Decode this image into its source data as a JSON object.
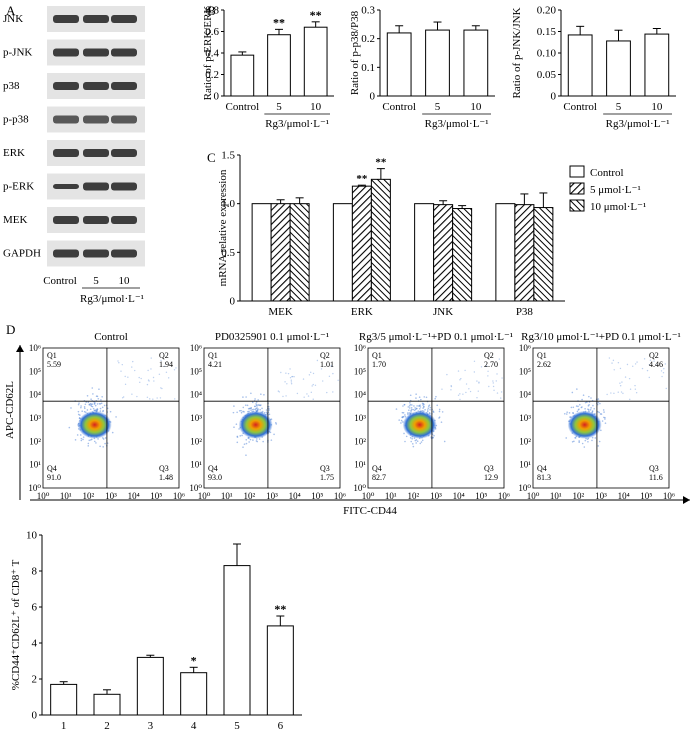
{
  "panels": {
    "A": "A",
    "B": "B",
    "C": "C",
    "D": "D"
  },
  "western_blot": {
    "bands": [
      "JNK",
      "p-JNK",
      "p38",
      "p-p38",
      "ERK",
      "p-ERK",
      "MEK",
      "GAPDH"
    ],
    "lanes": [
      "Control",
      "5",
      "10"
    ],
    "group_label": "Rg3/μmol·L⁻¹"
  },
  "chart_data": [
    {
      "id": "B1",
      "type": "bar",
      "categories": [
        "Control",
        "5",
        "10"
      ],
      "values": [
        0.38,
        0.57,
        0.64
      ],
      "errors": [
        0.03,
        0.05,
        0.05
      ],
      "significance": [
        "",
        "**",
        "**"
      ],
      "ylabel": "Ratio of p-ERK/ERK",
      "xlabel": "Rg3/μmol·L⁻¹",
      "ylim": [
        0,
        0.8
      ],
      "yticks": [
        "0",
        "0.2",
        "0.4",
        "0.6",
        "0.8"
      ]
    },
    {
      "id": "B2",
      "type": "bar",
      "categories": [
        "Control",
        "5",
        "10"
      ],
      "values": [
        0.22,
        0.23,
        0.23
      ],
      "errors": [
        0.025,
        0.028,
        0.015
      ],
      "significance": [
        "",
        "",
        ""
      ],
      "ylabel": "Ratio of p-p38/P38",
      "xlabel": "Rg3/μmol·L⁻¹",
      "ylim": [
        0,
        0.3
      ],
      "yticks": [
        "0",
        "0.1",
        "0.2",
        "0.3"
      ]
    },
    {
      "id": "B3",
      "type": "bar",
      "categories": [
        "Control",
        "5",
        "10"
      ],
      "values": [
        0.142,
        0.128,
        0.144
      ],
      "errors": [
        0.02,
        0.025,
        0.013
      ],
      "significance": [
        "",
        "",
        ""
      ],
      "ylabel": "Ratio of p-JNK/JNK",
      "xlabel": "Rg3/μmol·L⁻¹",
      "ylim": [
        0,
        0.2
      ],
      "yticks": [
        "0",
        "0.05",
        "0.10",
        "0.15",
        "0.20"
      ]
    },
    {
      "id": "C",
      "type": "bar",
      "categories": [
        "MEK",
        "ERK",
        "JNK",
        "P38"
      ],
      "series": [
        {
          "name": "Control",
          "values": [
            1.0,
            1.0,
            1.0,
            1.0
          ],
          "errors": [
            0,
            0,
            0,
            0
          ],
          "significance": [
            "",
            "",
            "",
            ""
          ]
        },
        {
          "name": "5  μmol·L⁻¹",
          "values": [
            1.0,
            1.18,
            0.99,
            0.99
          ],
          "errors": [
            0.04,
            0.01,
            0.04,
            0.11
          ],
          "significance": [
            "",
            "**",
            "",
            ""
          ]
        },
        {
          "name": "10 μmol·L⁻¹",
          "values": [
            1.0,
            1.25,
            0.95,
            0.96
          ],
          "errors": [
            0.06,
            0.11,
            0.03,
            0.15
          ],
          "significance": [
            "",
            "**",
            "",
            ""
          ]
        }
      ],
      "ylabel": "mRNA relative expression",
      "ylim": [
        0,
        1.5
      ],
      "yticks": [
        "0",
        "0.5",
        "1.0",
        "1.5"
      ]
    },
    {
      "id": "D-bar",
      "type": "bar",
      "categories": [
        "1",
        "2",
        "3",
        "4",
        "5",
        "6"
      ],
      "values": [
        1.7,
        1.15,
        3.2,
        2.35,
        8.3,
        4.95
      ],
      "errors": [
        0.15,
        0.25,
        0.12,
        0.3,
        1.2,
        0.55
      ],
      "significance": [
        "",
        "",
        "",
        "*",
        "",
        "**"
      ],
      "ylabel": "%CD44⁺CD62L⁺ of CD8⁺ T",
      "ylim": [
        0,
        10
      ],
      "yticks": [
        "0",
        "2",
        "4",
        "6",
        "8",
        "10"
      ]
    },
    {
      "id": "D-flow",
      "type": "scatter",
      "plots": [
        {
          "title": "Control",
          "Q1": "5.59",
          "Q2": "1.94",
          "Q3": "1.48",
          "Q4": "91.0"
        },
        {
          "title": "PD0325901 0.1 μmol·L⁻¹",
          "Q1": "4.21",
          "Q2": "1.01",
          "Q3": "1.75",
          "Q4": "93.0"
        },
        {
          "title": "Rg3/5 μmol·L⁻¹+PD 0.1 μmol·L⁻¹",
          "Q1": "1.70",
          "Q2": "2.70",
          "Q3": "12.9",
          "Q4": "82.7"
        },
        {
          "title": "Rg3/10 μmol·L⁻¹+PD 0.1 μmol·L⁻¹",
          "Q1": "2.62",
          "Q2": "4.46",
          "Q3": "11.6",
          "Q4": "81.3"
        }
      ],
      "xlabel": "FITC-CD44",
      "ylabel": "APC-CD62L",
      "xticks": [
        "10⁰",
        "10¹",
        "10²",
        "10³",
        "10⁴",
        "10⁵",
        "10⁶"
      ],
      "yticks": [
        "10⁰",
        "10¹",
        "10²",
        "10³",
        "10⁴",
        "10⁵",
        "10⁶"
      ]
    }
  ]
}
